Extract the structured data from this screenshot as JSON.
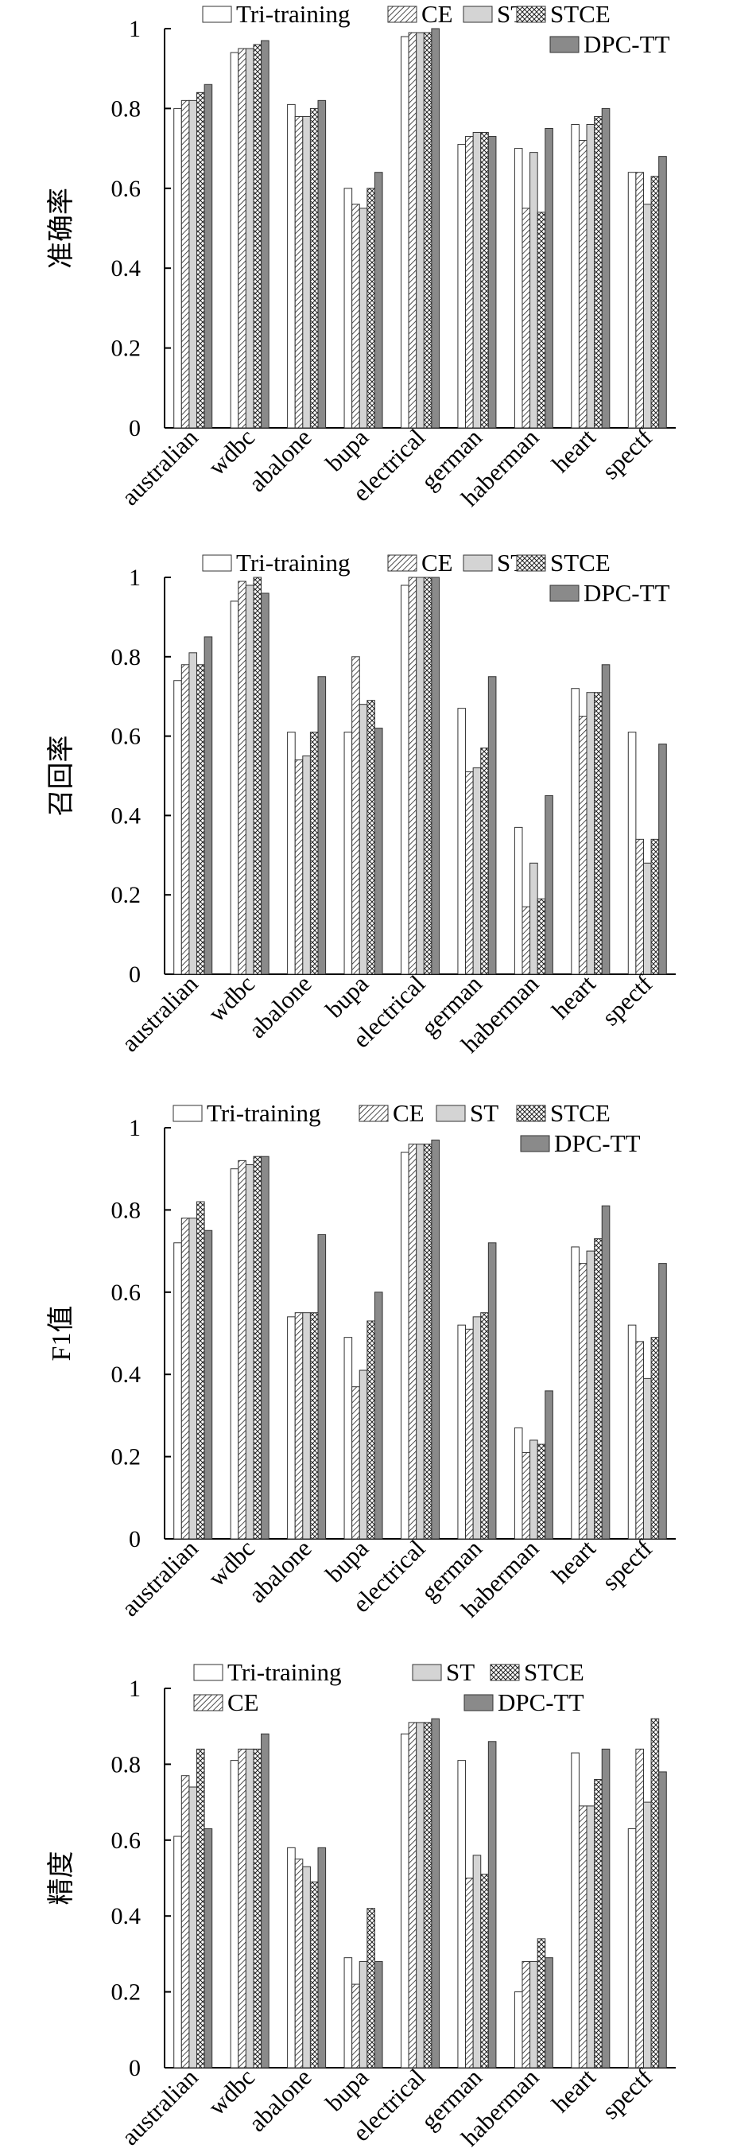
{
  "chart_data": [
    {
      "type": "bar",
      "title": "",
      "xlabel": "",
      "ylabel": "准确率",
      "ylim": [
        0,
        1
      ],
      "yticks": [
        "0",
        "0.2",
        "0.4",
        "0.6",
        "0.8",
        "1"
      ],
      "grid": false,
      "legend_position": "top-right",
      "categories": [
        "australian",
        "wdbc",
        "abalone",
        "bupa",
        "electrical",
        "german",
        "haberman",
        "heart",
        "spectf"
      ],
      "series": [
        {
          "name": "Tri-training",
          "pattern": "white",
          "values": [
            0.8,
            0.94,
            0.81,
            0.6,
            0.98,
            0.71,
            0.7,
            0.76,
            0.64
          ]
        },
        {
          "name": "CE",
          "pattern": "hatch",
          "values": [
            0.82,
            0.95,
            0.78,
            0.56,
            0.99,
            0.73,
            0.55,
            0.72,
            0.64
          ]
        },
        {
          "name": "ST",
          "pattern": "lightgray",
          "values": [
            0.82,
            0.95,
            0.78,
            0.55,
            0.99,
            0.74,
            0.69,
            0.76,
            0.56
          ]
        },
        {
          "name": "STCE",
          "pattern": "cross",
          "values": [
            0.84,
            0.96,
            0.8,
            0.6,
            0.99,
            0.74,
            0.54,
            0.78,
            0.63
          ]
        },
        {
          "name": "DPC-TT",
          "pattern": "darkgray",
          "values": [
            0.86,
            0.97,
            0.82,
            0.64,
            1.0,
            0.73,
            0.75,
            0.8,
            0.68
          ]
        }
      ]
    },
    {
      "type": "bar",
      "title": "",
      "xlabel": "",
      "ylabel": "召回率",
      "ylim": [
        0,
        1
      ],
      "yticks": [
        "0",
        "0.2",
        "0.4",
        "0.6",
        "0.8",
        "1"
      ],
      "grid": false,
      "legend_position": "top-right",
      "categories": [
        "australian",
        "wdbc",
        "abalone",
        "bupa",
        "electrical",
        "german",
        "haberman",
        "heart",
        "spectf"
      ],
      "series": [
        {
          "name": "Tri-training",
          "pattern": "white",
          "values": [
            0.74,
            0.94,
            0.61,
            0.61,
            0.98,
            0.67,
            0.37,
            0.72,
            0.61
          ]
        },
        {
          "name": "CE",
          "pattern": "hatch",
          "values": [
            0.78,
            0.99,
            0.54,
            0.8,
            1.0,
            0.51,
            0.17,
            0.65,
            0.34
          ]
        },
        {
          "name": "ST",
          "pattern": "lightgray",
          "values": [
            0.81,
            0.98,
            0.55,
            0.68,
            1.0,
            0.52,
            0.28,
            0.71,
            0.28
          ]
        },
        {
          "name": "STCE",
          "pattern": "cross",
          "values": [
            0.78,
            1.0,
            0.61,
            0.69,
            1.0,
            0.57,
            0.19,
            0.71,
            0.34
          ]
        },
        {
          "name": "DPC-TT",
          "pattern": "darkgray",
          "values": [
            0.85,
            0.96,
            0.75,
            0.62,
            1.0,
            0.75,
            0.45,
            0.78,
            0.58
          ]
        }
      ]
    },
    {
      "type": "bar",
      "title": "",
      "xlabel": "",
      "ylabel": "F1值",
      "ylim": [
        0,
        1
      ],
      "yticks": [
        "0",
        "0.2",
        "0.4",
        "0.6",
        "0.8",
        "1"
      ],
      "grid": false,
      "legend_position": "top-right",
      "categories": [
        "australian",
        "wdbc",
        "abalone",
        "bupa",
        "electrical",
        "german",
        "haberman",
        "heart",
        "spectf"
      ],
      "series": [
        {
          "name": "Tri-training",
          "pattern": "white",
          "values": [
            0.72,
            0.9,
            0.54,
            0.49,
            0.94,
            0.52,
            0.27,
            0.71,
            0.52
          ]
        },
        {
          "name": "CE",
          "pattern": "hatch",
          "values": [
            0.78,
            0.92,
            0.55,
            0.37,
            0.96,
            0.51,
            0.21,
            0.67,
            0.48
          ]
        },
        {
          "name": "ST",
          "pattern": "lightgray",
          "values": [
            0.78,
            0.91,
            0.55,
            0.41,
            0.96,
            0.54,
            0.24,
            0.7,
            0.39
          ]
        },
        {
          "name": "STCE",
          "pattern": "cross",
          "values": [
            0.82,
            0.93,
            0.55,
            0.53,
            0.96,
            0.55,
            0.23,
            0.73,
            0.49
          ]
        },
        {
          "name": "DPC-TT",
          "pattern": "darkgray",
          "values": [
            0.75,
            0.93,
            0.74,
            0.6,
            0.97,
            0.72,
            0.36,
            0.81,
            0.67
          ]
        }
      ]
    },
    {
      "type": "bar",
      "title": "",
      "xlabel": "",
      "ylabel": "精度",
      "ylim": [
        0,
        1
      ],
      "yticks": [
        "0",
        "0.2",
        "0.4",
        "0.6",
        "0.8",
        "1"
      ],
      "grid": false,
      "legend_position": "top-right",
      "categories": [
        "australian",
        "wdbc",
        "abalone",
        "bupa",
        "electrical",
        "german",
        "haberman",
        "heart",
        "spectf"
      ],
      "series": [
        {
          "name": "Tri-training",
          "pattern": "white",
          "values": [
            0.61,
            0.81,
            0.58,
            0.29,
            0.88,
            0.81,
            0.2,
            0.83,
            0.63
          ]
        },
        {
          "name": "CE",
          "pattern": "hatch",
          "values": [
            0.77,
            0.84,
            0.55,
            0.22,
            0.91,
            0.5,
            0.28,
            0.69,
            0.84
          ]
        },
        {
          "name": "ST",
          "pattern": "lightgray",
          "values": [
            0.74,
            0.84,
            0.53,
            0.28,
            0.91,
            0.56,
            0.28,
            0.69,
            0.7
          ]
        },
        {
          "name": "STCE",
          "pattern": "cross",
          "values": [
            0.84,
            0.84,
            0.49,
            0.42,
            0.91,
            0.51,
            0.34,
            0.76,
            0.92
          ]
        },
        {
          "name": "DPC-TT",
          "pattern": "darkgray",
          "values": [
            0.63,
            0.88,
            0.58,
            0.28,
            0.92,
            0.86,
            0.29,
            0.84,
            0.78
          ]
        }
      ]
    }
  ]
}
